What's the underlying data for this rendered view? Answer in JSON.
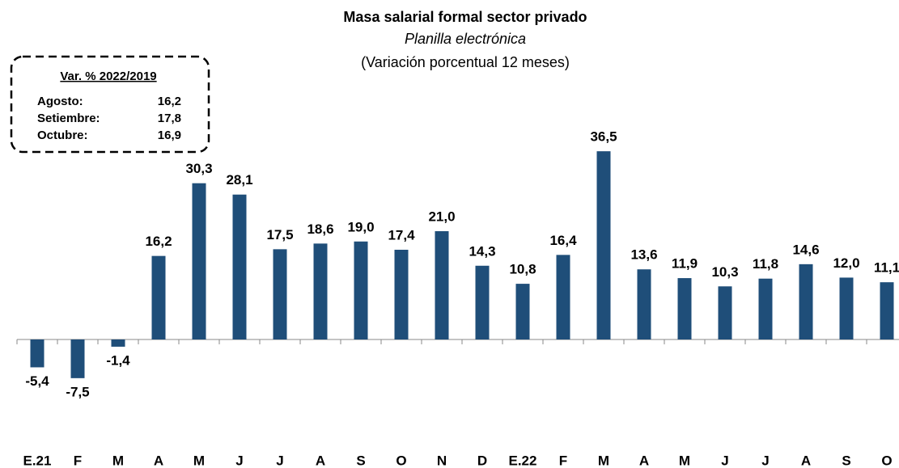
{
  "chart_data": {
    "type": "bar",
    "title": "Masa salarial formal sector privado",
    "subtitle": "Planilla electrónica",
    "subtitle2": "(Variación porcentual 12 meses)",
    "categories": [
      "E.21",
      "F",
      "M",
      "A",
      "M",
      "J",
      "J",
      "A",
      "S",
      "O",
      "N",
      "D",
      "E.22",
      "F",
      "M",
      "A",
      "M",
      "J",
      "J",
      "A",
      "S",
      "O"
    ],
    "values": [
      -5.4,
      -7.5,
      -1.4,
      16.2,
      30.3,
      28.1,
      17.5,
      18.6,
      19.0,
      17.4,
      21.0,
      14.3,
      10.8,
      16.4,
      36.5,
      13.6,
      11.9,
      10.3,
      11.8,
      14.6,
      12.0,
      11.1
    ],
    "value_labels": [
      "-5,4",
      "-7,5",
      "-1,4",
      "16,2",
      "30,3",
      "28,1",
      "17,5",
      "18,6",
      "19,0",
      "17,4",
      "21,0",
      "14,3",
      "10,8",
      "16,4",
      "36,5",
      "13,6",
      "11,9",
      "10,3",
      "11,8",
      "14,6",
      "12,0",
      "11,1"
    ],
    "color": "#1f4e79",
    "ylim": [
      -20,
      40
    ],
    "inset": {
      "title": "Var. % 2022/2019",
      "rows": [
        {
          "label": "Agosto:",
          "value": "16,2"
        },
        {
          "label": "Setiembre:",
          "value": "17,8"
        },
        {
          "label": "Octubre:",
          "value": "16,9"
        }
      ]
    }
  }
}
